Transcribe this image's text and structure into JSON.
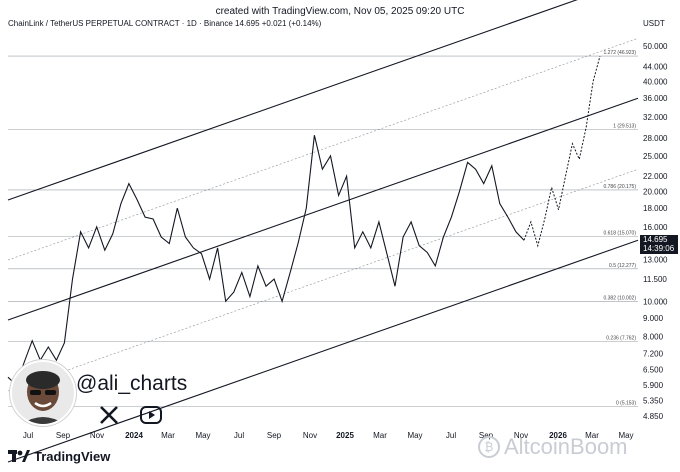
{
  "header": {
    "created": "created with TradingView.com, Nov 05, 2025 09:20 UTC",
    "symbol": "ChainLink / TetherUS PERPETUAL CONTRACT · 1D · Binance  14.695  +0.021 (+0.14%)",
    "currency": "USDT"
  },
  "price_tag": {
    "price": "14.695",
    "countdown": "14:39:06"
  },
  "footer": {
    "brand": "TradingView",
    "watermark": "AltcoinBoom"
  },
  "overlay": {
    "handle": "@ali_charts",
    "icons": [
      "avatar-icon",
      "x-logo-icon",
      "play-icon"
    ]
  },
  "chart_data": {
    "type": "line",
    "title": "ChainLink / TetherUS PERPETUAL CONTRACT · 1D · Binance",
    "scale": "log",
    "ylim": [
      4.5,
      56
    ],
    "yticks": [
      "50.000",
      "44.000",
      "40.000",
      "36.000",
      "32.000",
      "28.000",
      "25.000",
      "22.000",
      "20.000",
      "18.000",
      "16.000",
      "14.695",
      "13.000",
      "11.500",
      "10.000",
      "9.000",
      "8.000",
      "7.200",
      "6.500",
      "5.900",
      "5.350",
      "4.850"
    ],
    "xticks": [
      "Jul",
      "Sep",
      "Nov",
      "2024",
      "Mar",
      "May",
      "Jul",
      "Sep",
      "Nov",
      "2025",
      "Mar",
      "May",
      "Jul",
      "Sep",
      "Nov",
      "2026",
      "Mar",
      "May"
    ],
    "series": [
      {
        "values": [
          6.2,
          5.9,
          6.8,
          7.8,
          6.9,
          7.5,
          6.9,
          7.7,
          11.5,
          15.5,
          14.0,
          16.0,
          13.8,
          15.3,
          18.5,
          21.0,
          19.0,
          17.0,
          16.8,
          15.0,
          14.4,
          18.0,
          15.0,
          14.0,
          13.5,
          11.5,
          14.0,
          10.0,
          10.6,
          12.0,
          10.3,
          12.5,
          11.0,
          11.5,
          10.0,
          12.0,
          14.5,
          18.0,
          28.5,
          23.0,
          25.0,
          19.5,
          22.0,
          14.0,
          15.5,
          14.0,
          16.5,
          13.5,
          11.0,
          15.0,
          16.5,
          14.2,
          13.6,
          12.5,
          15.0,
          17.0,
          20.0,
          24.0,
          23.0,
          21.0,
          23.5,
          18.5,
          17.0,
          15.5,
          14.7
        ]
      },
      {
        "name": "projection",
        "values": [
          14.7,
          16.5,
          14.2,
          16.8,
          20.5,
          17.8,
          22.0,
          27.0,
          24.5,
          30.0,
          40.0,
          46.9
        ]
      }
    ],
    "channel_lines": 3,
    "fib_levels": [
      {
        "label": "1.272 (46.923)",
        "value": 46.923
      },
      {
        "label": "1 (29.513)",
        "value": 29.513
      },
      {
        "label": "0.786 (20.175)",
        "value": 20.175
      },
      {
        "label": "0.618 (15.070)",
        "value": 15.07
      },
      {
        "label": "0.5 (12.277)",
        "value": 12.277
      },
      {
        "label": "0.382 (10.002)",
        "value": 10.002
      },
      {
        "label": "0.236 (7.762)",
        "value": 7.762
      },
      {
        "label": "0 (5.153)",
        "value": 5.153
      }
    ],
    "grid": false
  }
}
